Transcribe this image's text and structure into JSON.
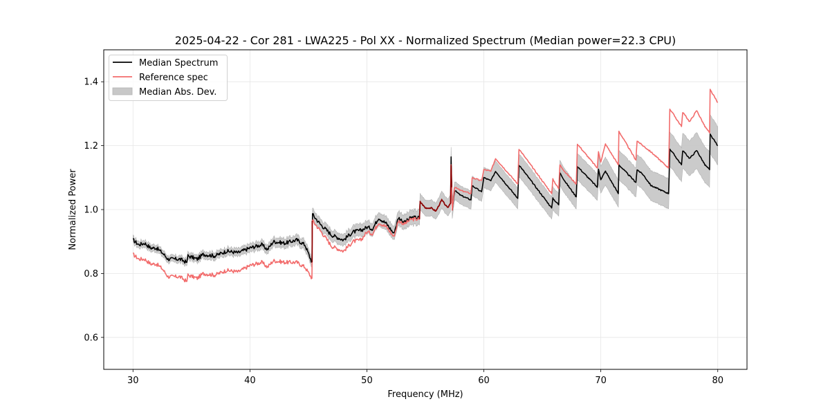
{
  "chart_data": {
    "type": "line",
    "title": "2025-04-22 - Cor 281 - LWA225 - Pol XX - Normalized Spectrum (Median power=22.3 CPU)",
    "xlabel": "Frequency (MHz)",
    "ylabel": "Normalized Power",
    "xlim": [
      27.5,
      82.5
    ],
    "ylim": [
      0.5,
      1.5
    ],
    "xticks": [
      30,
      40,
      50,
      60,
      70,
      80
    ],
    "xtick_labels": [
      "30",
      "40",
      "50",
      "60",
      "70",
      "80"
    ],
    "yticks": [
      0.6,
      0.8,
      1.0,
      1.2,
      1.4
    ],
    "ytick_labels": [
      "0.6",
      "0.8",
      "1.0",
      "1.2",
      "1.4"
    ],
    "grid": true,
    "legend": {
      "placement": "top-left",
      "entries": [
        {
          "label": "Median Spectrum",
          "kind": "line",
          "color": "#000000"
        },
        {
          "label": "Reference spec",
          "kind": "line",
          "color": "#f26b6b"
        },
        {
          "label": "Median Abs. Dev.",
          "kind": "patch",
          "color": "#c8c8c8"
        }
      ]
    },
    "series": [
      {
        "name": "Median Spectrum",
        "color": "#000000",
        "x": [
          30.0,
          30.5,
          31.0,
          31.5,
          32.0,
          32.5,
          33.0,
          34.0,
          34.6,
          34.7,
          35.5,
          36.0,
          37.0,
          38.0,
          39.0,
          40.0,
          41.0,
          41.5,
          42.0,
          43.0,
          44.0,
          44.7,
          45.3,
          45.35,
          46.0,
          47.0,
          48.0,
          48.8,
          49.5,
          50.0,
          50.5,
          51.0,
          51.7,
          52.3,
          52.7,
          53.2,
          53.8,
          54.5,
          54.55,
          55.0,
          55.5,
          55.9,
          56.4,
          56.9,
          57.15,
          57.2,
          57.3,
          57.5,
          58.0,
          58.9,
          59.0,
          59.8,
          60.0,
          60.6,
          61.0,
          62.9,
          63.0,
          65.8,
          65.9,
          66.4,
          66.5,
          67.0,
          67.4,
          67.9,
          68.0,
          69.7,
          69.8,
          70.0,
          70.4,
          71.5,
          71.55,
          73.0,
          73.1,
          73.6,
          74.3,
          75.8,
          75.9,
          76.9,
          77.0,
          77.6,
          78.2,
          78.9,
          79.3,
          79.35,
          80.0
        ],
        "y": [
          0.905,
          0.89,
          0.895,
          0.88,
          0.88,
          0.865,
          0.845,
          0.845,
          0.835,
          0.855,
          0.845,
          0.86,
          0.855,
          0.87,
          0.865,
          0.88,
          0.89,
          0.875,
          0.9,
          0.895,
          0.905,
          0.89,
          0.835,
          0.985,
          0.955,
          0.92,
          0.905,
          0.93,
          0.935,
          0.945,
          0.94,
          0.975,
          0.955,
          0.925,
          0.975,
          0.96,
          0.975,
          0.975,
          1.025,
          1.005,
          1.005,
          0.995,
          1.03,
          1.005,
          1.02,
          1.165,
          1.0,
          1.06,
          1.045,
          1.03,
          1.075,
          1.055,
          1.1,
          1.09,
          1.12,
          1.035,
          1.14,
          1.005,
          1.035,
          1.015,
          1.115,
          1.085,
          1.065,
          1.04,
          1.135,
          1.07,
          1.125,
          1.095,
          1.12,
          1.05,
          1.14,
          1.085,
          1.125,
          1.11,
          1.075,
          1.05,
          1.19,
          1.14,
          1.185,
          1.16,
          1.185,
          1.14,
          1.125,
          1.235,
          1.2
        ]
      },
      {
        "name": "Reference spec",
        "color": "#f26b6b",
        "x": [
          30.0,
          30.5,
          31.0,
          31.5,
          32.0,
          32.5,
          33.0,
          34.0,
          34.6,
          34.7,
          35.5,
          36.0,
          37.0,
          38.0,
          39.0,
          40.0,
          41.0,
          41.5,
          42.0,
          43.0,
          44.0,
          44.7,
          45.3,
          45.35,
          46.0,
          47.0,
          48.0,
          48.8,
          49.5,
          50.0,
          50.5,
          51.0,
          51.7,
          52.3,
          52.7,
          53.2,
          53.8,
          54.5,
          54.55,
          55.0,
          55.5,
          55.9,
          56.4,
          56.9,
          57.15,
          57.2,
          57.3,
          57.5,
          58.0,
          58.9,
          59.0,
          59.8,
          60.0,
          60.6,
          61.0,
          62.9,
          63.0,
          65.8,
          65.9,
          66.4,
          66.5,
          67.0,
          67.4,
          67.9,
          68.0,
          69.7,
          69.8,
          70.0,
          70.4,
          71.5,
          71.55,
          73.0,
          73.1,
          73.6,
          74.3,
          75.8,
          75.9,
          76.9,
          77.0,
          77.6,
          78.2,
          78.9,
          79.3,
          79.35,
          80.0
        ],
        "y": [
          0.86,
          0.845,
          0.845,
          0.83,
          0.83,
          0.815,
          0.79,
          0.79,
          0.775,
          0.795,
          0.785,
          0.8,
          0.795,
          0.81,
          0.805,
          0.825,
          0.835,
          0.82,
          0.84,
          0.835,
          0.835,
          0.82,
          0.785,
          0.965,
          0.935,
          0.885,
          0.87,
          0.9,
          0.905,
          0.93,
          0.925,
          0.96,
          0.945,
          0.915,
          0.965,
          0.955,
          0.97,
          0.97,
          1.025,
          1.005,
          1.005,
          0.995,
          1.03,
          1.005,
          1.02,
          1.14,
          1.0,
          1.07,
          1.06,
          1.05,
          1.1,
          1.09,
          1.125,
          1.12,
          1.16,
          1.08,
          1.19,
          1.05,
          1.095,
          1.065,
          1.14,
          1.115,
          1.1,
          1.08,
          1.205,
          1.13,
          1.18,
          1.15,
          1.205,
          1.14,
          1.245,
          1.155,
          1.215,
          1.2,
          1.18,
          1.13,
          1.315,
          1.26,
          1.305,
          1.275,
          1.31,
          1.26,
          1.24,
          1.375,
          1.335
        ]
      }
    ],
    "mad_band": {
      "name": "Median Abs. Dev.",
      "color": "#c8c8c8",
      "relative_halfwidth_start": 0.012,
      "relative_halfwidth_end": 0.05
    }
  }
}
